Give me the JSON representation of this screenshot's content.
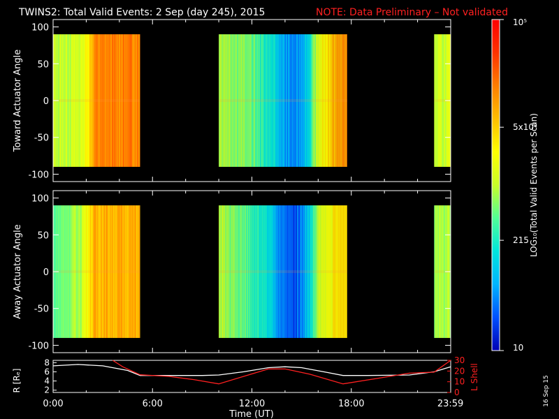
{
  "header": {
    "title": "TWINS2: Total Valid Events:  2 Sep (day 245), 2015",
    "note": "NOTE: Data Preliminary – Not validated",
    "note_color": "#ff2020"
  },
  "date_stamp": "16 Sep 15",
  "chart_data": [
    {
      "type": "heatmap",
      "name": "toward",
      "ylabel": "Toward Actuator Angle",
      "ylim": [
        -110,
        110
      ],
      "y_ticks": [
        100,
        50,
        0,
        -50,
        -100
      ],
      "x_range_hours": [
        0,
        24
      ],
      "angle_range": [
        -90,
        90
      ],
      "data_segments_hours": [
        [
          0.0,
          5.25
        ],
        [
          10.0,
          17.75
        ],
        [
          23.0,
          24.0
        ]
      ],
      "profile": [
        {
          "t": 0.0,
          "v": 0.5
        },
        {
          "t": 1.6,
          "v": 0.52
        },
        {
          "t": 2.0,
          "v": 0.6
        },
        {
          "t": 2.5,
          "v": 0.78
        },
        {
          "t": 5.25,
          "v": 0.8
        },
        {
          "t": 10.0,
          "v": 0.5
        },
        {
          "t": 12.0,
          "v": 0.42
        },
        {
          "t": 13.2,
          "v": 0.3
        },
        {
          "t": 14.0,
          "v": 0.18
        },
        {
          "t": 14.6,
          "v": 0.15
        },
        {
          "t": 15.4,
          "v": 0.28
        },
        {
          "t": 16.0,
          "v": 0.55
        },
        {
          "t": 17.0,
          "v": 0.72
        },
        {
          "t": 17.75,
          "v": 0.78
        },
        {
          "t": 23.0,
          "v": 0.5
        },
        {
          "t": 24.0,
          "v": 0.52
        }
      ]
    },
    {
      "type": "heatmap",
      "name": "away",
      "ylabel": "Away Actuator Angle",
      "ylim": [
        -110,
        110
      ],
      "y_ticks": [
        100,
        50,
        0,
        -50,
        -100
      ],
      "x_range_hours": [
        0,
        24
      ],
      "angle_range": [
        -90,
        90
      ],
      "data_segments_hours": [
        [
          0.0,
          5.25
        ],
        [
          10.0,
          17.75
        ],
        [
          23.0,
          24.0
        ]
      ],
      "profile": [
        {
          "t": 0.0,
          "v": 0.4
        },
        {
          "t": 1.6,
          "v": 0.48
        },
        {
          "t": 2.0,
          "v": 0.6
        },
        {
          "t": 2.5,
          "v": 0.72
        },
        {
          "t": 5.25,
          "v": 0.72
        },
        {
          "t": 10.0,
          "v": 0.48
        },
        {
          "t": 12.0,
          "v": 0.38
        },
        {
          "t": 13.2,
          "v": 0.25
        },
        {
          "t": 14.0,
          "v": 0.12
        },
        {
          "t": 14.6,
          "v": 0.1
        },
        {
          "t": 15.4,
          "v": 0.25
        },
        {
          "t": 16.0,
          "v": 0.5
        },
        {
          "t": 17.0,
          "v": 0.62
        },
        {
          "t": 17.75,
          "v": 0.66
        },
        {
          "t": 23.0,
          "v": 0.48
        },
        {
          "t": 24.0,
          "v": 0.5
        }
      ]
    },
    {
      "type": "line",
      "name": "ephemeris",
      "xlabel": "Time (UT)",
      "x_tick_labels": [
        "0:00",
        "6:00",
        "12:00",
        "18:00",
        "23:59"
      ],
      "x_tick_hours": [
        0,
        6,
        12,
        18,
        23.983
      ],
      "left_axis": {
        "label": "R [Rₑ]",
        "ylim": [
          1.5,
          8.5
        ],
        "ticks": [
          2,
          4,
          6,
          8
        ]
      },
      "right_axis": {
        "label": "L Shell",
        "ylim": [
          0,
          30
        ],
        "ticks": [
          0,
          10,
          20,
          30
        ],
        "color": "#ff2020"
      },
      "series": [
        {
          "name": "R",
          "axis": "left",
          "color": "#ffffff",
          "points": [
            [
              0,
              7.3
            ],
            [
              1.5,
              7.6
            ],
            [
              3.0,
              7.3
            ],
            [
              4.5,
              6.3
            ],
            [
              5.25,
              5.2
            ],
            [
              7.0,
              5.2
            ],
            [
              9.0,
              5.2
            ],
            [
              10.0,
              5.3
            ],
            [
              11.5,
              6.0
            ],
            [
              13.0,
              6.9
            ],
            [
              14.0,
              7.1
            ],
            [
              15.0,
              6.9
            ],
            [
              16.5,
              5.9
            ],
            [
              17.5,
              5.2
            ],
            [
              19.0,
              5.2
            ],
            [
              21.5,
              5.3
            ],
            [
              23.0,
              6.0
            ],
            [
              24.0,
              7.1
            ]
          ]
        },
        {
          "name": "L Shell",
          "axis": "right",
          "color": "#ff2020",
          "points": [
            [
              3.6,
              30
            ],
            [
              4.2,
              24
            ],
            [
              5.25,
              16.5
            ],
            [
              7.0,
              15
            ],
            [
              8.5,
              12
            ],
            [
              10.0,
              8
            ],
            [
              11.5,
              15
            ],
            [
              13.0,
              22
            ],
            [
              14.0,
              22
            ],
            [
              15.5,
              17
            ],
            [
              17.5,
              8
            ],
            [
              19.5,
              13
            ],
            [
              21.5,
              18
            ],
            [
              23.0,
              19
            ],
            [
              24.0,
              30
            ]
          ]
        }
      ]
    }
  ],
  "colorbar": {
    "label": "LOG₁₀(Total Valid Events per Scan)",
    "tick_labels": [
      "10⁵",
      "5x10³",
      "215",
      "10"
    ],
    "tick_values": [
      100000,
      5000,
      215,
      10
    ],
    "range": [
      10,
      100000
    ],
    "stops": [
      "#0000b4",
      "#0050ff",
      "#00b4ff",
      "#00e6dc",
      "#50ff96",
      "#c8ff28",
      "#ffff00",
      "#ffbe00",
      "#ff7d00",
      "#ff3200",
      "#ff0000"
    ]
  }
}
